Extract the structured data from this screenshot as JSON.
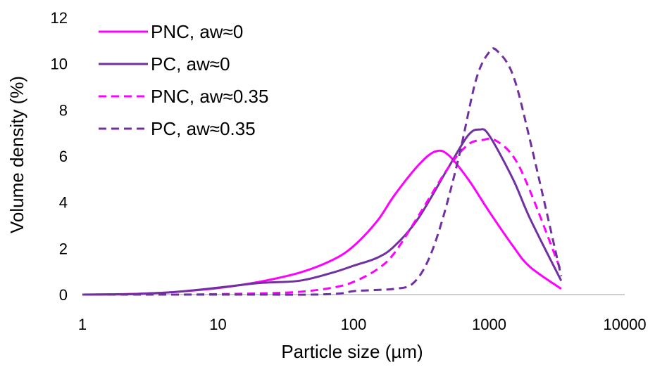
{
  "chart_data": {
    "type": "line",
    "xlabel": "Particle size (µm)",
    "ylabel": "Volume density (%)",
    "x_scale": "log",
    "xlim": [
      1,
      10000
    ],
    "ylim": [
      0,
      12
    ],
    "x_ticks": [
      "1",
      "10",
      "100",
      "1000",
      "10000"
    ],
    "y_ticks": [
      "0",
      "2",
      "4",
      "6",
      "8",
      "10",
      "12"
    ],
    "grid": false,
    "legend_position": "top-left",
    "series": [
      {
        "name": "PNC, aw≈0",
        "color": "#ff00ff",
        "style": "solid",
        "points": [
          [
            1,
            0
          ],
          [
            2,
            0.02
          ],
          [
            3,
            0.05
          ],
          [
            5,
            0.12
          ],
          [
            10,
            0.28
          ],
          [
            20,
            0.55
          ],
          [
            40,
            0.95
          ],
          [
            70,
            1.5
          ],
          [
            100,
            2.1
          ],
          [
            150,
            3.2
          ],
          [
            200,
            4.3
          ],
          [
            300,
            5.6
          ],
          [
            400,
            6.2
          ],
          [
            500,
            6.05
          ],
          [
            700,
            5.0
          ],
          [
            1000,
            3.6
          ],
          [
            1500,
            2.1
          ],
          [
            2000,
            1.2
          ],
          [
            3400,
            0.25
          ]
        ]
      },
      {
        "name": "PC, aw≈0",
        "color": "#7030a0",
        "style": "solid",
        "points": [
          [
            1,
            0
          ],
          [
            2,
            0.01
          ],
          [
            3,
            0.05
          ],
          [
            5,
            0.12
          ],
          [
            10,
            0.3
          ],
          [
            20,
            0.5
          ],
          [
            40,
            0.6
          ],
          [
            70,
            0.95
          ],
          [
            100,
            1.25
          ],
          [
            150,
            1.6
          ],
          [
            200,
            2.1
          ],
          [
            300,
            3.3
          ],
          [
            500,
            5.5
          ],
          [
            700,
            6.9
          ],
          [
            850,
            7.15
          ],
          [
            1000,
            6.9
          ],
          [
            1500,
            5.0
          ],
          [
            2000,
            3.3
          ],
          [
            3400,
            0.6
          ]
        ]
      },
      {
        "name": "PNC, aw≈0.35",
        "color": "#ff00ff",
        "style": "dashed",
        "points": [
          [
            1,
            0
          ],
          [
            5,
            0
          ],
          [
            10,
            0.02
          ],
          [
            20,
            0.05
          ],
          [
            40,
            0.12
          ],
          [
            70,
            0.3
          ],
          [
            100,
            0.55
          ],
          [
            150,
            1.1
          ],
          [
            200,
            1.8
          ],
          [
            300,
            3.4
          ],
          [
            500,
            5.5
          ],
          [
            700,
            6.5
          ],
          [
            900,
            6.7
          ],
          [
            1100,
            6.7
          ],
          [
            1500,
            6.0
          ],
          [
            2000,
            4.5
          ],
          [
            3400,
            1.0
          ]
        ]
      },
      {
        "name": "PC, aw≈0.35",
        "color": "#7030a0",
        "style": "dashed",
        "points": [
          [
            1,
            0
          ],
          [
            10,
            0
          ],
          [
            20,
            0
          ],
          [
            50,
            0
          ],
          [
            80,
            0.05
          ],
          [
            100,
            0.15
          ],
          [
            150,
            0.2
          ],
          [
            200,
            0.25
          ],
          [
            270,
            0.45
          ],
          [
            350,
            1.4
          ],
          [
            450,
            3.2
          ],
          [
            600,
            6.0
          ],
          [
            800,
            9.3
          ],
          [
            1000,
            10.5
          ],
          [
            1150,
            10.55
          ],
          [
            1500,
            9.5
          ],
          [
            2000,
            6.7
          ],
          [
            3400,
            0.8
          ]
        ]
      }
    ]
  }
}
